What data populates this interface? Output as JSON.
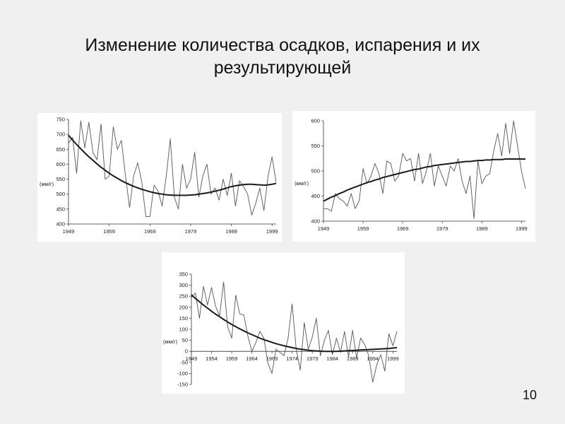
{
  "slide": {
    "title": "Изменение количества осадков, испарения и их результирующей",
    "page_number": "10"
  },
  "chart_data": [
    {
      "type": "line",
      "ylabel": "(мм/г)",
      "ylim": [
        400,
        750
      ],
      "yticks": [
        400,
        450,
        500,
        550,
        600,
        650,
        700,
        750
      ],
      "xlim": [
        1949,
        2000
      ],
      "xticks": [
        1949,
        1959,
        1969,
        1979,
        1989,
        1999
      ],
      "grid": false,
      "x": [
        1949,
        1950,
        1951,
        1952,
        1953,
        1954,
        1955,
        1956,
        1957,
        1958,
        1959,
        1960,
        1961,
        1962,
        1963,
        1964,
        1965,
        1966,
        1967,
        1968,
        1969,
        1970,
        1971,
        1972,
        1973,
        1974,
        1975,
        1976,
        1977,
        1978,
        1979,
        1980,
        1981,
        1982,
        1983,
        1984,
        1985,
        1986,
        1987,
        1988,
        1989,
        1990,
        1991,
        1992,
        1993,
        1994,
        1995,
        1996,
        1997,
        1998,
        1999,
        2000
      ],
      "series": [
        {
          "values": [
            670,
            690,
            570,
            745,
            655,
            740,
            640,
            615,
            735,
            550,
            560,
            725,
            650,
            680,
            560,
            455,
            560,
            605,
            540,
            425,
            425,
            530,
            510,
            460,
            560,
            685,
            490,
            450,
            600,
            520,
            550,
            640,
            490,
            560,
            600,
            500,
            520,
            480,
            550,
            495,
            570,
            460,
            545,
            525,
            500,
            430,
            470,
            520,
            445,
            560,
            625,
            540
          ]
        },
        {
          "values": [
            697,
            681,
            666,
            652,
            638,
            625,
            613,
            601,
            590,
            580,
            570,
            561,
            553,
            545,
            538,
            532,
            526,
            521,
            516,
            512,
            508,
            505,
            502,
            500,
            498,
            497,
            496,
            496,
            496,
            496,
            497,
            498,
            500,
            502,
            504,
            507,
            510,
            513,
            517,
            521,
            525,
            528,
            530,
            532,
            533,
            533,
            532,
            531,
            530,
            531,
            533,
            536
          ]
        }
      ]
    },
    {
      "type": "line",
      "ylabel": "(мм/г)",
      "ylim": [
        400,
        600
      ],
      "yticks": [
        400,
        450,
        500,
        550,
        600
      ],
      "xlim": [
        1949,
        2000
      ],
      "xticks": [
        1949,
        1959,
        1969,
        1979,
        1989,
        1999
      ],
      "grid": false,
      "x": [
        1949,
        1950,
        1951,
        1952,
        1953,
        1954,
        1955,
        1956,
        1957,
        1958,
        1959,
        1960,
        1961,
        1962,
        1963,
        1964,
        1965,
        1966,
        1967,
        1968,
        1969,
        1970,
        1971,
        1972,
        1973,
        1974,
        1975,
        1976,
        1977,
        1978,
        1979,
        1980,
        1981,
        1982,
        1983,
        1984,
        1985,
        1986,
        1987,
        1988,
        1989,
        1990,
        1991,
        1992,
        1993,
        1994,
        1995,
        1996,
        1997,
        1998,
        1999,
        2000
      ],
      "series": [
        {
          "values": [
            425,
            425,
            420,
            455,
            445,
            440,
            430,
            455,
            425,
            440,
            505,
            475,
            490,
            515,
            495,
            455,
            520,
            515,
            480,
            490,
            535,
            520,
            525,
            480,
            535,
            475,
            500,
            535,
            470,
            510,
            490,
            470,
            510,
            500,
            525,
            480,
            455,
            490,
            405,
            520,
            475,
            490,
            495,
            540,
            575,
            530,
            595,
            535,
            600,
            550,
            500,
            465
          ]
        },
        {
          "values": [
            440,
            444,
            448,
            451,
            455,
            458,
            462,
            465,
            468,
            471,
            474,
            477,
            479,
            482,
            484,
            487,
            489,
            491,
            493,
            495,
            497,
            499,
            501,
            503,
            504,
            506,
            508,
            509,
            511,
            512,
            513,
            514,
            515,
            516,
            517,
            518,
            519,
            519,
            520,
            521,
            521,
            522,
            522,
            523,
            523,
            523,
            524,
            524,
            524,
            524,
            524,
            524
          ]
        }
      ]
    },
    {
      "type": "line",
      "ylabel": "(мм/г)",
      "ylim": [
        -150,
        350
      ],
      "yticks": [
        -150,
        -100,
        -50,
        0,
        50,
        100,
        150,
        200,
        250,
        300,
        350
      ],
      "xlim": [
        1949,
        2000
      ],
      "xticks": [
        1949,
        1954,
        1959,
        1964,
        1969,
        1974,
        1979,
        1984,
        1989,
        1994,
        1999
      ],
      "grid": false,
      "x": [
        1949,
        1950,
        1951,
        1952,
        1953,
        1954,
        1955,
        1956,
        1957,
        1958,
        1959,
        1960,
        1961,
        1962,
        1963,
        1964,
        1965,
        1966,
        1967,
        1968,
        1969,
        1970,
        1971,
        1972,
        1973,
        1974,
        1975,
        1976,
        1977,
        1978,
        1979,
        1980,
        1981,
        1982,
        1983,
        1984,
        1985,
        1986,
        1987,
        1988,
        1989,
        1990,
        1991,
        1992,
        1993,
        1994,
        1995,
        1996,
        1997,
        1998,
        1999,
        2000
      ],
      "series": [
        {
          "values": [
            245,
            265,
            150,
            295,
            210,
            290,
            205,
            160,
            315,
            110,
            60,
            255,
            170,
            165,
            70,
            0,
            40,
            90,
            60,
            -55,
            -100,
            10,
            -5,
            -20,
            60,
            215,
            10,
            -85,
            130,
            10,
            65,
            150,
            -20,
            50,
            95,
            -15,
            60,
            -5,
            90,
            -25,
            95,
            -30,
            60,
            30,
            -20,
            -140,
            -60,
            -15,
            -90,
            80,
            25,
            90
          ]
        },
        {
          "values": [
            256,
            240,
            225,
            210,
            196,
            182,
            169,
            157,
            145,
            133,
            122,
            112,
            102,
            93,
            84,
            76,
            68,
            60,
            53,
            47,
            41,
            35,
            30,
            25,
            21,
            17,
            13,
            10,
            8,
            5,
            3,
            2,
            1,
            0,
            0,
            0,
            0,
            1,
            2,
            3,
            4,
            5,
            6,
            7,
            8,
            9,
            10,
            11,
            12,
            13,
            15,
            17
          ]
        }
      ]
    }
  ]
}
